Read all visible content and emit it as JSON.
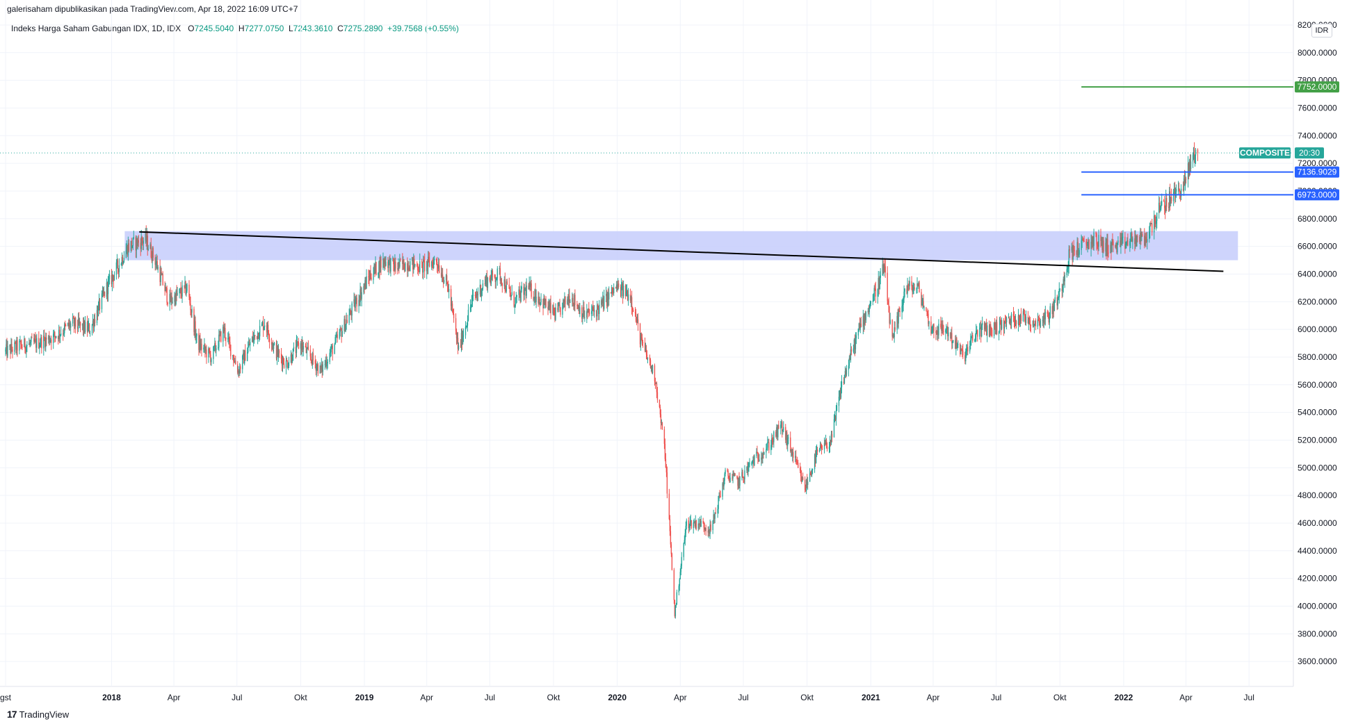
{
  "header": {
    "published": "galerisaham dipublikasikan pada TradingView.com, Apr 18, 2022 16:09 UTC+7"
  },
  "legend": {
    "name": "Indeks Harga Saham Gabungan IDX, 1D, IDX",
    "o_label": "O",
    "o": "7245.5040",
    "h_label": "H",
    "h": "7277.0750",
    "l_label": "L",
    "l": "7243.3610",
    "c_label": "C",
    "c": "7275.2890",
    "change": "+39.7568 (+0.55%)"
  },
  "currency": "IDR",
  "footer": {
    "logo": "17",
    "brand": "TradingView"
  },
  "colors": {
    "up": "#26a69a",
    "down": "#ef5350",
    "zone": "#c5cdfb",
    "trendline": "#000000",
    "blue_level": "#2962ff",
    "green_level": "#43a047",
    "tag_bg": "#26a69a"
  },
  "chart_data": {
    "type": "candlestick",
    "symbol": "COMPOSITE",
    "last_price_label": "COMPOSITE",
    "countdown": "20:30",
    "last_close": 7275.289,
    "y_axis": {
      "ticks": [
        "3600.0000",
        "3800.0000",
        "4000.0000",
        "4200.0000",
        "4400.0000",
        "4600.0000",
        "4800.0000",
        "5000.0000",
        "5200.0000",
        "5400.0000",
        "5600.0000",
        "5800.0000",
        "6000.0000",
        "6200.0000",
        "6400.0000",
        "6600.0000",
        "6800.0000",
        "7000.0000",
        "7200.0000",
        "7400.0000",
        "7600.0000",
        "7800.0000",
        "8000.0000",
        "8200.0000"
      ],
      "range": [
        3420,
        8270
      ]
    },
    "x_axis": {
      "ticks": [
        {
          "label": "gst",
          "date": "2017-08-01"
        },
        {
          "label": "2018",
          "date": "2018-01-01",
          "bold": true
        },
        {
          "label": "Apr",
          "date": "2018-04-01"
        },
        {
          "label": "Jul",
          "date": "2018-07-01"
        },
        {
          "label": "Okt",
          "date": "2018-10-01"
        },
        {
          "label": "2019",
          "date": "2019-01-01",
          "bold": true
        },
        {
          "label": "Apr",
          "date": "2019-04-01"
        },
        {
          "label": "Jul",
          "date": "2019-07-01"
        },
        {
          "label": "Okt",
          "date": "2019-10-01"
        },
        {
          "label": "2020",
          "date": "2020-01-01",
          "bold": true
        },
        {
          "label": "Apr",
          "date": "2020-04-01"
        },
        {
          "label": "Jul",
          "date": "2020-07-01"
        },
        {
          "label": "Okt",
          "date": "2020-10-01"
        },
        {
          "label": "2021",
          "date": "2021-01-01",
          "bold": true
        },
        {
          "label": "Apr",
          "date": "2021-04-01"
        },
        {
          "label": "Jul",
          "date": "2021-07-01"
        },
        {
          "label": "Okt",
          "date": "2021-10-01"
        },
        {
          "label": "2022",
          "date": "2022-01-01",
          "bold": true
        },
        {
          "label": "Apr",
          "date": "2022-04-01"
        },
        {
          "label": "Jul",
          "date": "2022-07-01"
        }
      ],
      "range": [
        "2017-08-01",
        "2022-09-01"
      ]
    },
    "close_path": [
      [
        "2017-08-01",
        5840
      ],
      [
        "2017-08-20",
        5880
      ],
      [
        "2017-09-15",
        5900
      ],
      [
        "2017-10-10",
        5950
      ],
      [
        "2017-11-05",
        6040
      ],
      [
        "2017-12-01",
        6000
      ],
      [
        "2017-12-25",
        6300
      ],
      [
        "2018-01-25",
        6600
      ],
      [
        "2018-02-19",
        6650
      ],
      [
        "2018-03-05",
        6500
      ],
      [
        "2018-03-25",
        6200
      ],
      [
        "2018-04-20",
        6300
      ],
      [
        "2018-05-05",
        5900
      ],
      [
        "2018-05-25",
        5800
      ],
      [
        "2018-06-12",
        6000
      ],
      [
        "2018-07-03",
        5700
      ],
      [
        "2018-07-20",
        5900
      ],
      [
        "2018-08-10",
        6050
      ],
      [
        "2018-08-25",
        5850
      ],
      [
        "2018-09-10",
        5750
      ],
      [
        "2018-09-30",
        5900
      ],
      [
        "2018-10-15",
        5800
      ],
      [
        "2018-10-30",
        5700
      ],
      [
        "2018-11-20",
        5900
      ],
      [
        "2018-12-15",
        6150
      ],
      [
        "2019-01-10",
        6400
      ],
      [
        "2019-01-30",
        6500
      ],
      [
        "2019-02-15",
        6450
      ],
      [
        "2019-03-05",
        6480
      ],
      [
        "2019-03-25",
        6450
      ],
      [
        "2019-04-15",
        6500
      ],
      [
        "2019-05-02",
        6300
      ],
      [
        "2019-05-17",
        5850
      ],
      [
        "2019-06-05",
        6200
      ],
      [
        "2019-06-25",
        6350
      ],
      [
        "2019-07-15",
        6400
      ],
      [
        "2019-08-05",
        6200
      ],
      [
        "2019-08-25",
        6300
      ],
      [
        "2019-09-15",
        6200
      ],
      [
        "2019-10-05",
        6100
      ],
      [
        "2019-10-25",
        6250
      ],
      [
        "2019-11-15",
        6100
      ],
      [
        "2019-12-05",
        6150
      ],
      [
        "2019-12-30",
        6300
      ],
      [
        "2020-01-20",
        6250
      ],
      [
        "2020-02-05",
        5900
      ],
      [
        "2020-02-25",
        5650
      ],
      [
        "2020-03-10",
        5100
      ],
      [
        "2020-03-24",
        3950
      ],
      [
        "2020-04-10",
        4600
      ],
      [
        "2020-04-30",
        4600
      ],
      [
        "2020-05-15",
        4550
      ],
      [
        "2020-06-05",
        4950
      ],
      [
        "2020-06-25",
        4900
      ],
      [
        "2020-07-15",
        5050
      ],
      [
        "2020-08-05",
        5150
      ],
      [
        "2020-08-25",
        5300
      ],
      [
        "2020-09-10",
        5100
      ],
      [
        "2020-09-28",
        4850
      ],
      [
        "2020-10-15",
        5100
      ],
      [
        "2020-11-05",
        5200
      ],
      [
        "2020-11-20",
        5600
      ],
      [
        "2020-12-15",
        6000
      ],
      [
        "2021-01-10",
        6300
      ],
      [
        "2021-01-20",
        6450
      ],
      [
        "2021-02-01",
        5900
      ],
      [
        "2021-02-20",
        6300
      ],
      [
        "2021-03-10",
        6300
      ],
      [
        "2021-03-30",
        6000
      ],
      [
        "2021-04-20",
        6000
      ],
      [
        "2021-05-15",
        5800
      ],
      [
        "2021-06-05",
        6000
      ],
      [
        "2021-06-25",
        6000
      ],
      [
        "2021-07-15",
        6050
      ],
      [
        "2021-08-05",
        6100
      ],
      [
        "2021-08-25",
        6050
      ],
      [
        "2021-09-15",
        6100
      ],
      [
        "2021-09-30",
        6250
      ],
      [
        "2021-10-15",
        6550
      ],
      [
        "2021-11-01",
        6600
      ],
      [
        "2021-11-20",
        6650
      ],
      [
        "2021-12-05",
        6600
      ],
      [
        "2021-12-25",
        6600
      ],
      [
        "2022-01-15",
        6650
      ],
      [
        "2022-02-01",
        6650
      ],
      [
        "2022-02-20",
        6850
      ],
      [
        "2022-03-10",
        6950
      ],
      [
        "2022-03-30",
        7050
      ],
      [
        "2022-04-10",
        7250
      ],
      [
        "2022-04-18",
        7275
      ]
    ],
    "resistance_zone": {
      "from": "2018-01-20",
      "to": "2022-06-15",
      "low": 6500,
      "high": 6710
    },
    "trendline": {
      "start": [
        "2018-02-10",
        6705
      ],
      "end": [
        "2022-05-25",
        6420
      ]
    },
    "levels": [
      {
        "label": "7752.0000",
        "value": 7752,
        "from": "2021-11-01",
        "color": "#43a047"
      },
      {
        "label": "7136.9029",
        "value": 7136.9029,
        "from": "2021-11-01",
        "color": "#2962ff"
      },
      {
        "label": "6973.0000",
        "value": 6973,
        "from": "2021-11-01",
        "color": "#2962ff"
      }
    ]
  }
}
